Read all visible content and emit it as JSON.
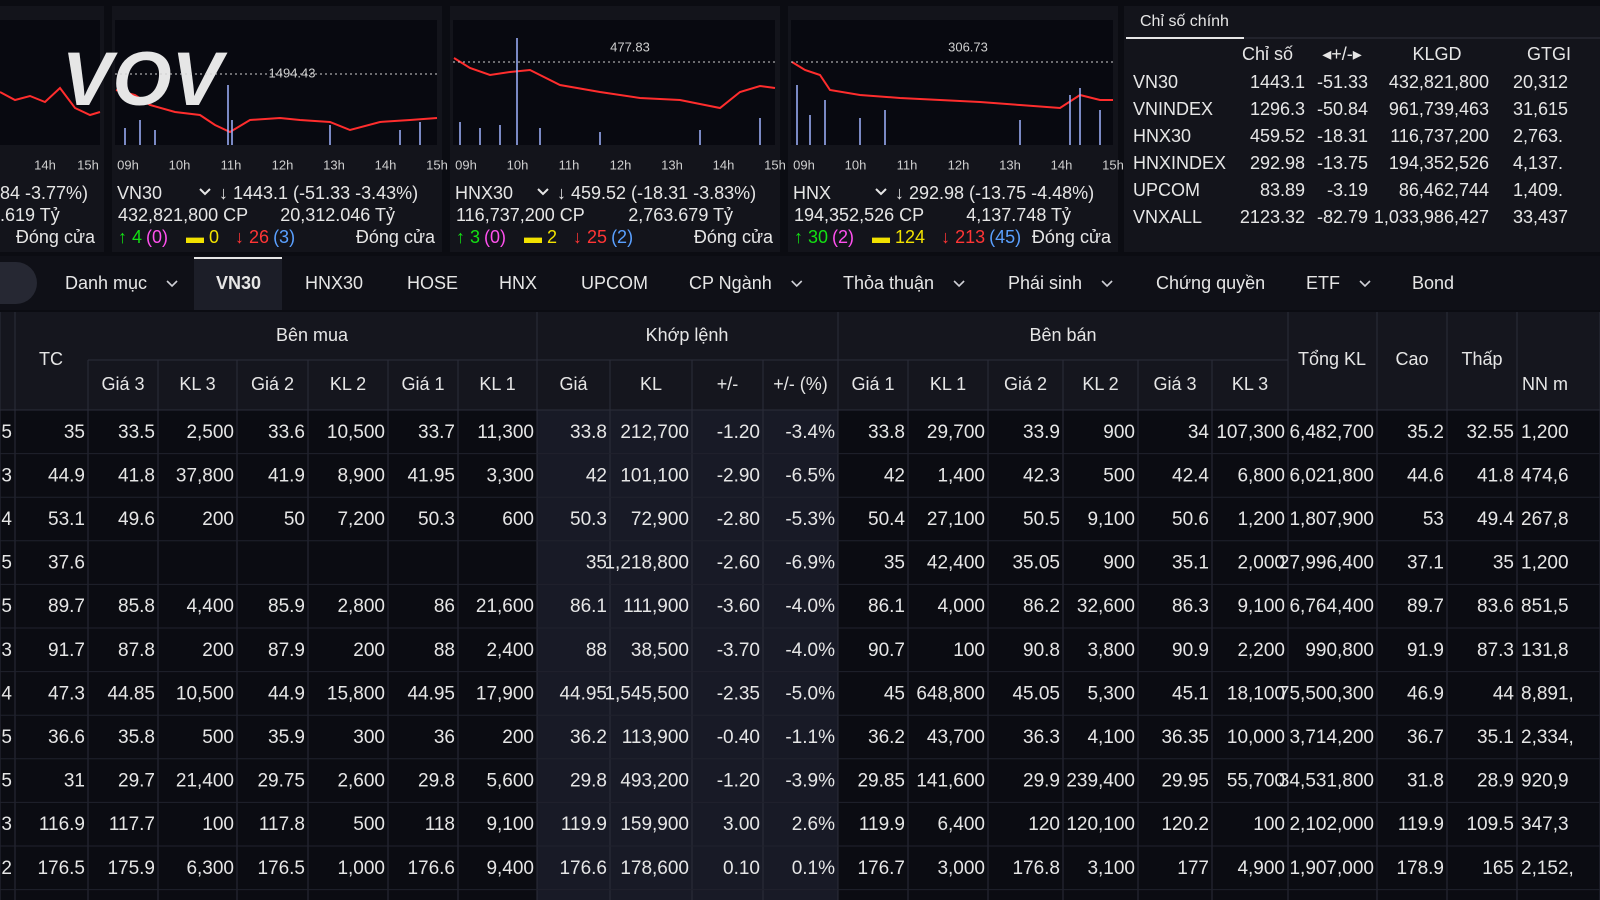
{
  "logo": "VOV",
  "mini_panels": [
    {
      "times": [
        "14h",
        "15h"
      ],
      "change": "84 -3.77%)",
      "value": ".619 Tỷ",
      "status": "Đóng cửa"
    },
    {
      "ref_label": "1494.43",
      "times": [
        "09h",
        "10h",
        "11h",
        "12h",
        "13h",
        "14h",
        "15h"
      ],
      "name": "VN30",
      "change": "↓ 1443.1 (-51.33 -3.43%)",
      "volume": "432,821,800 CP",
      "value": "20,312.046 Tỷ",
      "up": "↑ 4",
      "up_paren": "(0)",
      "flat": "▬ 0",
      "down": "↓ 26",
      "down_paren": "(3)",
      "status": "Đóng cửa"
    },
    {
      "ref_label": "477.83",
      "times": [
        "09h",
        "10h",
        "11h",
        "12h",
        "13h",
        "14h",
        "15h"
      ],
      "name": "HNX30",
      "change": "↓ 459.52 (-18.31 -3.83%)",
      "volume": "116,737,200 CP",
      "value": "2,763.679 Tỷ",
      "up": "↑ 3",
      "up_paren": "(0)",
      "flat": "▬ 2",
      "down": "↓ 25",
      "down_paren": "(2)",
      "status": "Đóng cửa"
    },
    {
      "ref_label": "306.73",
      "times": [
        "09h",
        "10h",
        "11h",
        "12h",
        "13h",
        "14h",
        "15h"
      ],
      "name": "HNX",
      "change": "↓ 292.98 (-13.75 -4.48%)",
      "volume": "194,352,526 CP",
      "value": "4,137.748 Tỷ",
      "up": "↑ 30",
      "up_paren": "(2)",
      "flat": "▬ 124",
      "down": "↓ 213",
      "down_paren": "(45)",
      "status": "Đóng cửa"
    }
  ],
  "index_table": {
    "title": "Chỉ số chính",
    "columns": [
      "Chỉ số",
      "◂+/-▸",
      "KLGD",
      "GTGI"
    ],
    "rows": [
      [
        "VN30",
        "1443.1",
        "-51.33",
        "432,821,800",
        "20,312"
      ],
      [
        "VNINDEX",
        "1296.3",
        "-50.84",
        "961,739,463",
        "31,615"
      ],
      [
        "HNX30",
        "459.52",
        "-18.31",
        "116,737,200",
        "2,763."
      ],
      [
        "HNXINDEX",
        "292.98",
        "-13.75",
        "194,352,526",
        "4,137."
      ],
      [
        "UPCOM",
        "83.89",
        "-3.19",
        "86,462,744",
        "1,409."
      ],
      [
        "VNXALL",
        "2123.32",
        "-82.79",
        "1,033,986,427",
        "33,437"
      ]
    ]
  },
  "tabs": [
    {
      "label": "Danh mục",
      "dropdown": true
    },
    {
      "label": "VN30",
      "active": true
    },
    {
      "label": "HNX30"
    },
    {
      "label": "HOSE"
    },
    {
      "label": "HNX"
    },
    {
      "label": "UPCOM"
    },
    {
      "label": "CP Ngành",
      "dropdown": true
    },
    {
      "label": "Thỏa thuận",
      "dropdown": true
    },
    {
      "label": "Phái sinh",
      "dropdown": true
    },
    {
      "label": "Chứng quyền"
    },
    {
      "label": "ETF",
      "dropdown": true
    },
    {
      "label": "Bond"
    }
  ],
  "board": {
    "groups": [
      "Bên mua",
      "Khớp lệnh",
      "Bên bán"
    ],
    "single_headers": [
      "TC",
      "Tổng KL",
      "Cao",
      "Thấp"
    ],
    "sub_headers": [
      "Giá 3",
      "KL 3",
      "Giá 2",
      "KL 2",
      "Giá 1",
      "KL 1",
      "Giá",
      "KL",
      "+/-",
      "+/- (%)",
      "Giá 1",
      "KL 1",
      "Giá 2",
      "KL 2",
      "Giá 3",
      "KL 3"
    ],
    "nn_header": "NN m",
    "rows": [
      [
        "5",
        "35",
        "33.5",
        "2,500",
        "33.6",
        "10,500",
        "33.7",
        "11,300",
        "33.8",
        "212,700",
        "-1.20",
        "-3.4%",
        "33.8",
        "29,700",
        "33.9",
        "900",
        "34",
        "107,300",
        "6,482,700",
        "35.2",
        "32.55",
        "1,200"
      ],
      [
        "3",
        "44.9",
        "41.8",
        "37,800",
        "41.9",
        "8,900",
        "41.95",
        "3,300",
        "42",
        "101,100",
        "-2.90",
        "-6.5%",
        "42",
        "1,400",
        "42.3",
        "500",
        "42.4",
        "6,800",
        "6,021,800",
        "44.6",
        "41.8",
        "474,6"
      ],
      [
        "4",
        "53.1",
        "49.6",
        "200",
        "50",
        "7,200",
        "50.3",
        "600",
        "50.3",
        "72,900",
        "-2.80",
        "-5.3%",
        "50.4",
        "27,100",
        "50.5",
        "9,100",
        "50.6",
        "1,200",
        "1,807,900",
        "53",
        "49.4",
        "267,8"
      ],
      [
        "5",
        "37.6",
        null,
        null,
        null,
        null,
        null,
        null,
        "35",
        "1,218,800",
        "-2.60",
        "-6.9%",
        "35",
        "42,400",
        "35.05",
        "900",
        "35.1",
        "2,000",
        "27,996,400",
        "37.1",
        "35",
        "1,200"
      ],
      [
        "5",
        "89.7",
        "85.8",
        "4,400",
        "85.9",
        "2,800",
        "86",
        "21,600",
        "86.1",
        "111,900",
        "-3.60",
        "-4.0%",
        "86.1",
        "4,000",
        "86.2",
        "32,600",
        "86.3",
        "9,100",
        "6,764,400",
        "89.7",
        "83.6",
        "851,5"
      ],
      [
        "3",
        "91.7",
        "87.8",
        "200",
        "87.9",
        "200",
        "88",
        "2,400",
        "88",
        "38,500",
        "-3.70",
        "-4.0%",
        "90.7",
        "100",
        "90.8",
        "3,800",
        "90.9",
        "2,200",
        "990,800",
        "91.9",
        "87.3",
        "131,8"
      ],
      [
        "4",
        "47.3",
        "44.85",
        "10,500",
        "44.9",
        "15,800",
        "44.95",
        "17,900",
        "44.95",
        "1,545,500",
        "-2.35",
        "-5.0%",
        "45",
        "648,800",
        "45.05",
        "5,300",
        "45.1",
        "18,100",
        "75,500,300",
        "46.9",
        "44",
        "8,891,"
      ],
      [
        "5",
        "36.6",
        "35.8",
        "500",
        "35.9",
        "300",
        "36",
        "200",
        "36.2",
        "113,900",
        "-0.40",
        "-1.1%",
        "36.2",
        "43,700",
        "36.3",
        "4,100",
        "36.35",
        "10,000",
        "3,714,200",
        "36.7",
        "35.1",
        "2,334,"
      ],
      [
        "5",
        "31",
        "29.7",
        "21,400",
        "29.75",
        "2,600",
        "29.8",
        "5,600",
        "29.8",
        "493,200",
        "-1.20",
        "-3.9%",
        "29.85",
        "141,600",
        "29.9",
        "239,400",
        "29.95",
        "55,700",
        "34,531,800",
        "31.8",
        "28.9",
        "920,9"
      ],
      [
        "3",
        "116.9",
        "117.7",
        "100",
        "117.8",
        "500",
        "118",
        "9,100",
        "119.9",
        "159,900",
        "3.00",
        "2.6%",
        "119.9",
        "6,400",
        "120",
        "120,100",
        "120.2",
        "100",
        "2,102,000",
        "119.9",
        "109.5",
        "347,3"
      ],
      [
        "2",
        "176.5",
        "175.9",
        "6,300",
        "176.5",
        "1,000",
        "176.6",
        "9,400",
        "176.6",
        "178,600",
        "0.10",
        "0.1%",
        "176.7",
        "3,000",
        "176.8",
        "3,100",
        "177",
        "4,900",
        "1,907,000",
        "178.9",
        "165",
        "2,152,"
      ]
    ]
  }
}
